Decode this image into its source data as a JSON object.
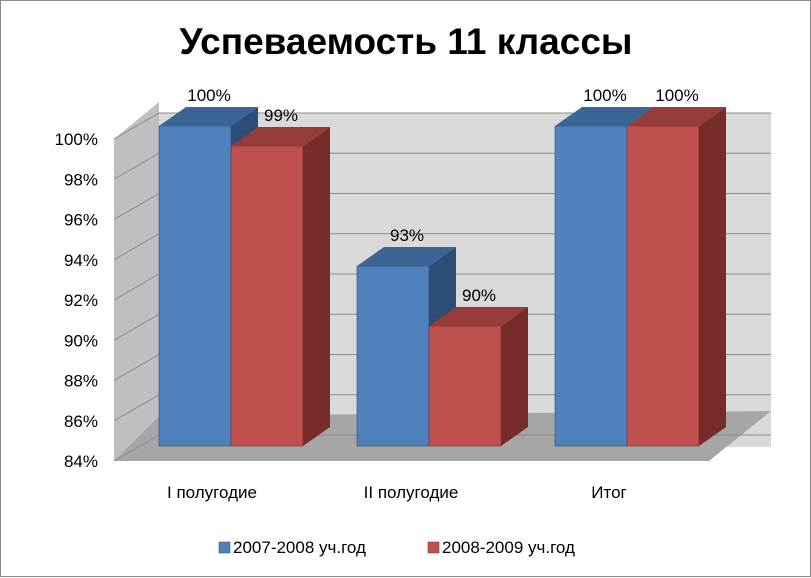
{
  "chart_data": {
    "type": "bar",
    "title": "Успеваемость 11 классы",
    "categories": [
      "I полугодие",
      "II полугодие",
      "Итог"
    ],
    "series": [
      {
        "name": "2007-2008 уч.год",
        "values": [
          100,
          93,
          100
        ],
        "labels": [
          "100%",
          "93%",
          "100%"
        ],
        "color": "#4f81bd",
        "side_color": "#2c4d75",
        "top_color": "#3c6494"
      },
      {
        "name": "2008-2009 уч.год",
        "values": [
          99,
          90,
          100
        ],
        "labels": [
          "99%",
          "90%",
          "100%"
        ],
        "color": "#c0504d",
        "side_color": "#772c2a",
        "top_color": "#963c3a"
      }
    ],
    "y_ticks": [
      "84%",
      "86%",
      "88%",
      "90%",
      "92%",
      "94%",
      "96%",
      "98%",
      "100%"
    ],
    "ylim": [
      84,
      100
    ],
    "y_step": 2,
    "grid": true,
    "legend_position": "bottom",
    "style": "3d-clustered-column",
    "wall_color": "#d9d9d9",
    "floor_color": "#a6a6a6",
    "side_wall_color": "#bfbfbf"
  }
}
